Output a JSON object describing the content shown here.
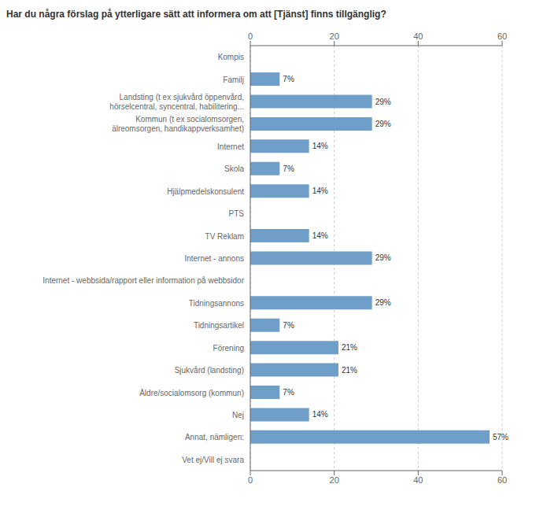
{
  "chart_data": {
    "type": "bar",
    "orientation": "horizontal",
    "title": "Har du några förslag på ytterligare sätt att informera om att [Tjänst] finns tillgänglig?",
    "categories": [
      "Kompis",
      "Familj",
      "Landsting (t ex sjukvård öppenvård,\nhörselcentral, syncentral, habilitering...",
      "Kommun (t ex socialomsorgen,\nälreomsorgen, handikappverksamhet)",
      "Internet",
      "Skola",
      "Hjälpmedelskonsulent",
      "PTS",
      "TV Reklam",
      "Internet - annons",
      "Internet - webbsida/rapport eller information på webbsidor",
      "Tidningsannons",
      "Tidningsartikel",
      "Förening",
      "Sjukvård (landsting)",
      "Äldre/socialomsorg (kommun)",
      "Nej",
      "Annat, nämligen:",
      "Vet ej/Vill ej svara"
    ],
    "values": [
      0,
      7,
      29,
      29,
      14,
      7,
      14,
      0,
      14,
      29,
      0,
      29,
      7,
      21,
      21,
      7,
      14,
      57,
      0
    ],
    "value_labels": [
      null,
      "7%",
      "29%",
      "29%",
      "14%",
      "7%",
      "14%",
      null,
      "14%",
      "29%",
      null,
      "29%",
      "7%",
      "21%",
      "21%",
      "7%",
      "14%",
      "57%",
      null
    ],
    "data_labels": true,
    "color": "#6f9fc8",
    "xlim": [
      0,
      60
    ],
    "xticks": [
      0,
      20,
      40,
      60
    ],
    "grid": true
  }
}
